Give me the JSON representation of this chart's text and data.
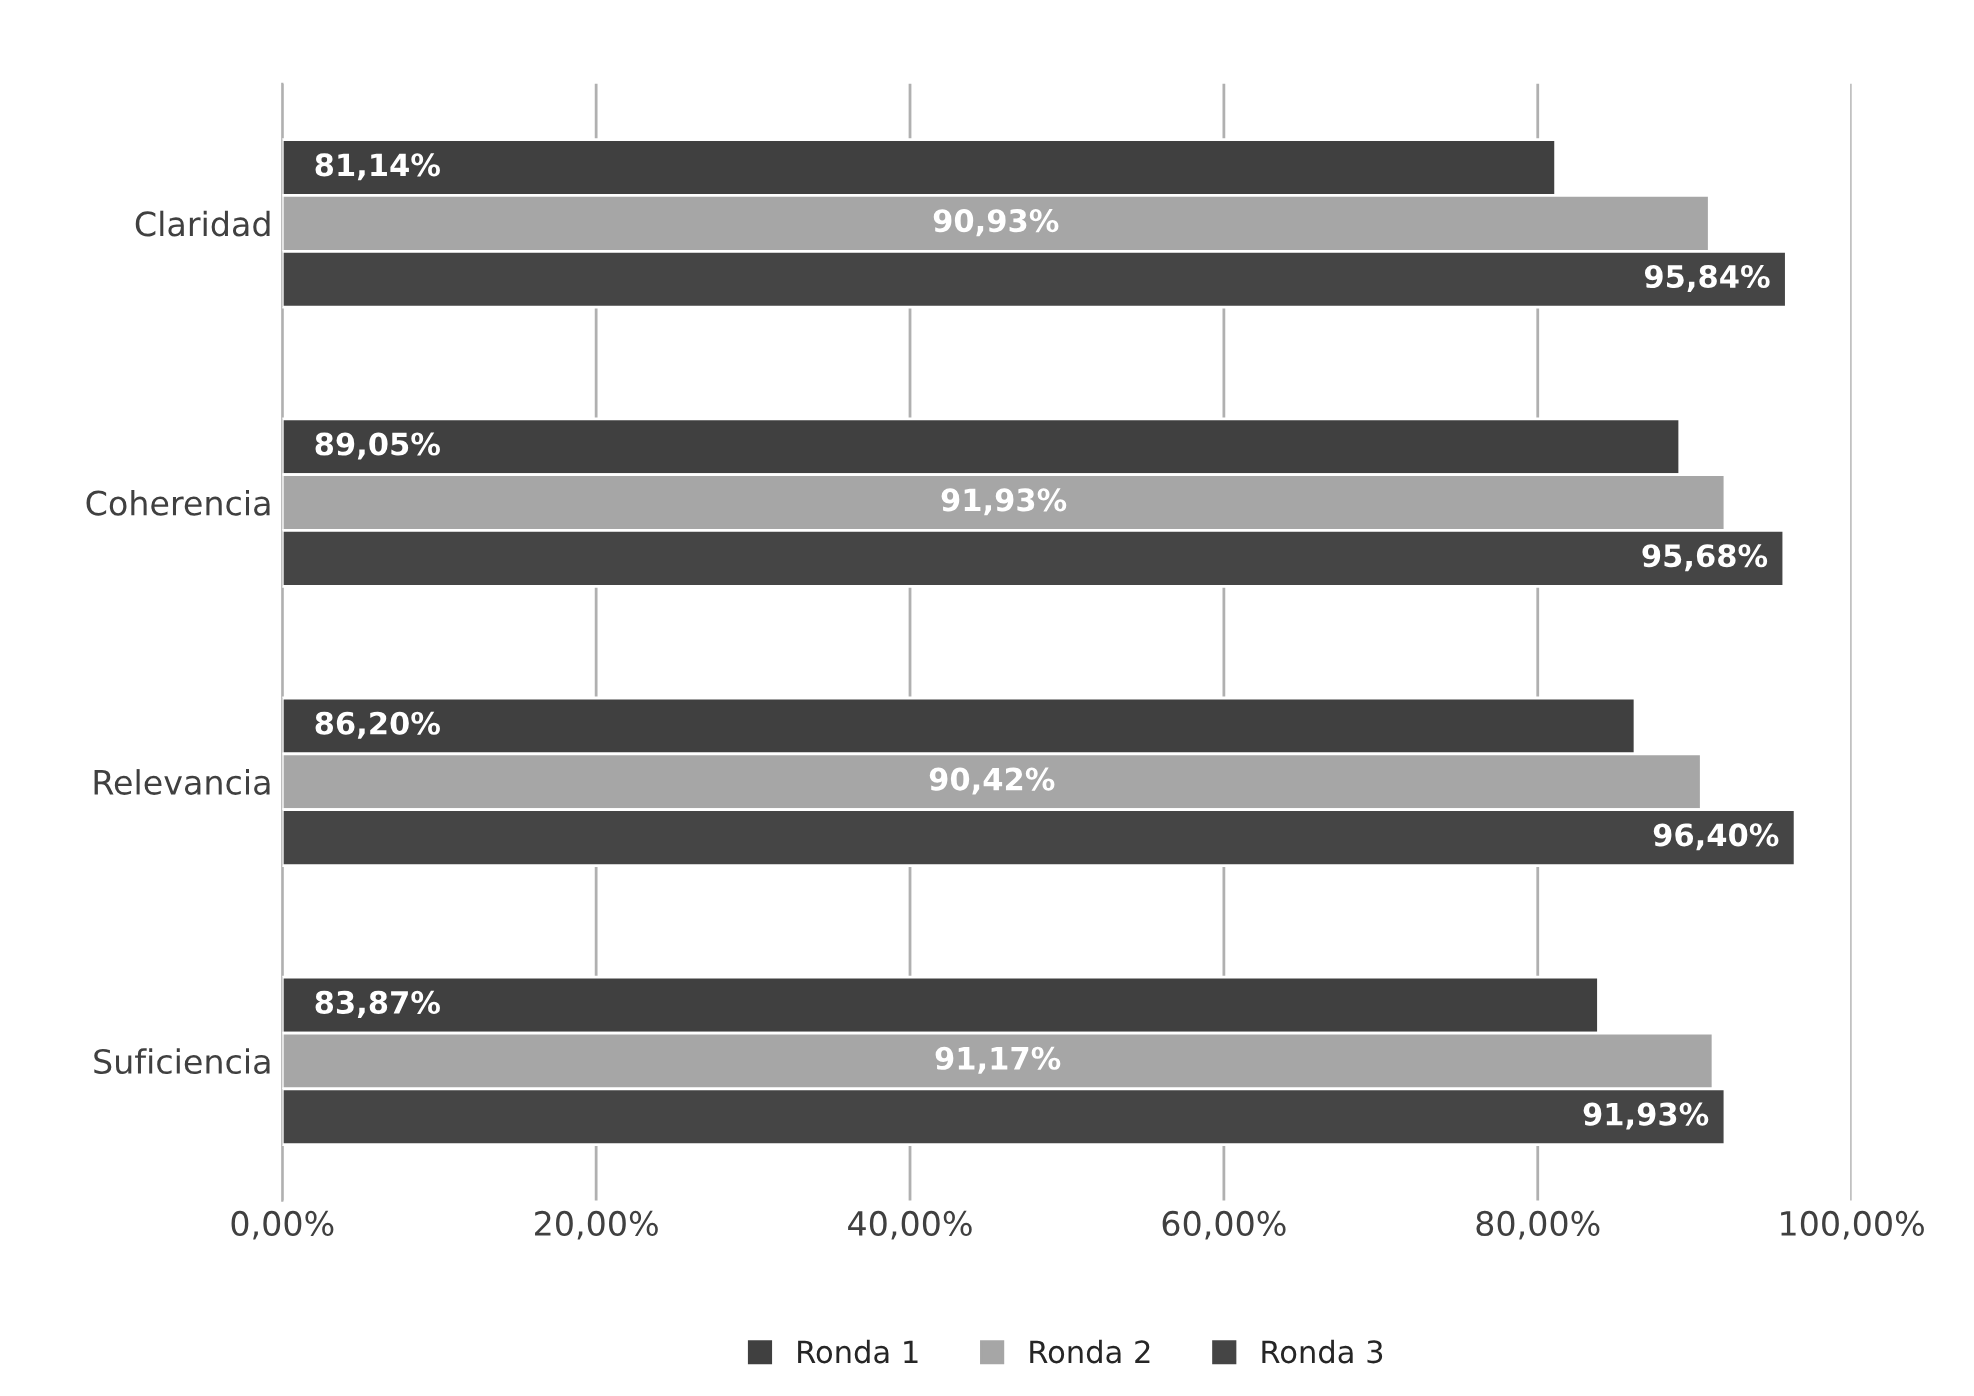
{
  "chart_data": {
    "type": "bar",
    "orientation": "horizontal",
    "categories": [
      "Claridad",
      "Coherencia",
      "Relevancia",
      "Suficiencia"
    ],
    "series": [
      {
        "name": "Ronda 1",
        "color": "#404040",
        "values": [
          81.14,
          89.05,
          86.2,
          83.87
        ],
        "value_labels": [
          "81,14%",
          "89,05%",
          "86,20%",
          "83,87%"
        ]
      },
      {
        "name": "Ronda 2",
        "color": "#a6a6a6",
        "values": [
          90.93,
          91.93,
          90.42,
          91.17
        ],
        "value_labels": [
          "90,93%",
          "91,93%",
          "90,42%",
          "91,17%"
        ]
      },
      {
        "name": "Ronda 3",
        "color": "#454545",
        "values": [
          95.84,
          95.68,
          96.4,
          91.93
        ],
        "value_labels": [
          "95,84%",
          "95,68%",
          "96,40%",
          "91,93%"
        ]
      }
    ],
    "xlim": [
      0,
      100
    ],
    "xticks": [
      {
        "value": 0,
        "label": "0,00%"
      },
      {
        "value": 20,
        "label": "20,00%"
      },
      {
        "value": 40,
        "label": "40,00%"
      },
      {
        "value": 60,
        "label": "60,00%"
      },
      {
        "value": 80,
        "label": "80,00%"
      },
      {
        "value": 100,
        "label": "100,00%"
      }
    ],
    "grid": "x",
    "legend": "bottom"
  }
}
